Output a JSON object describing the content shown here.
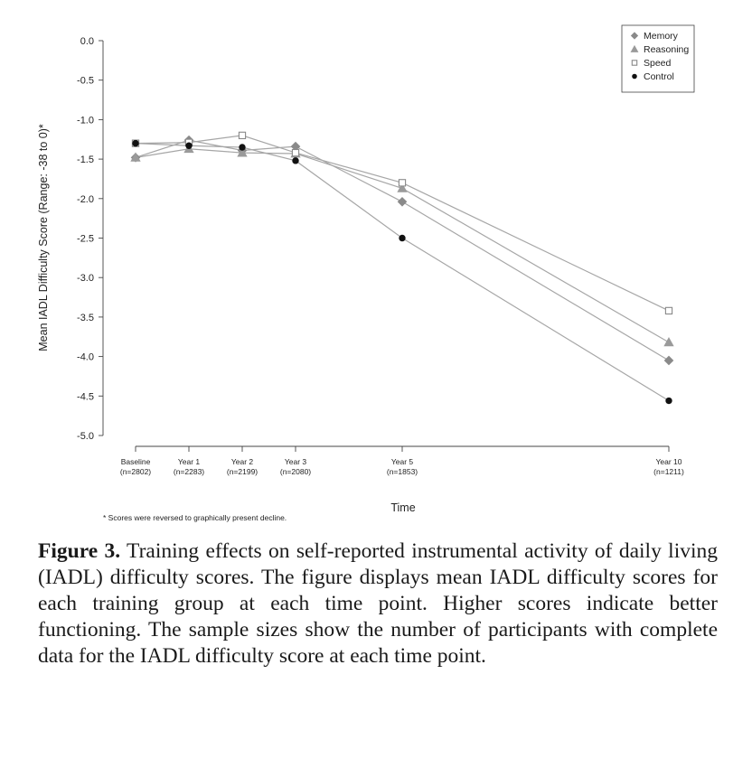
{
  "chart_data": {
    "type": "line",
    "ylabel": "Mean IADL Difficulty Score (Range: -38 to 0)*",
    "xlabel": "Time",
    "ylim": [
      -5.0,
      0.0
    ],
    "yticks": [
      "0.0",
      "-0.5",
      "-1.0",
      "-1.5",
      "-2.0",
      "-2.5",
      "-3.0",
      "-3.5",
      "-4.0",
      "-4.5",
      "-5.0"
    ],
    "x": [
      0,
      1,
      2,
      3,
      5,
      10
    ],
    "categories": [
      {
        "name": "Baseline",
        "n": "(n=2802)"
      },
      {
        "name": "Year 1",
        "n": "(n=2283)"
      },
      {
        "name": "Year 2",
        "n": "(n=2199)"
      },
      {
        "name": "Year 3",
        "n": "(n=2080)"
      },
      {
        "name": "Year 5",
        "n": "(n=1853)"
      },
      {
        "name": "Year 10",
        "n": "(n=1211)"
      }
    ],
    "series": [
      {
        "name": "Memory",
        "marker": "diamond",
        "values": [
          -1.48,
          -1.26,
          -1.39,
          -1.34,
          -2.04,
          -4.05
        ]
      },
      {
        "name": "Reasoning",
        "marker": "triangle",
        "values": [
          -1.48,
          -1.37,
          -1.42,
          -1.43,
          -1.87,
          -3.82
        ]
      },
      {
        "name": "Speed",
        "marker": "square-open",
        "values": [
          -1.3,
          -1.29,
          -1.2,
          -1.42,
          -1.8,
          -3.42
        ]
      },
      {
        "name": "Control",
        "marker": "circle",
        "values": [
          -1.3,
          -1.33,
          -1.35,
          -1.52,
          -2.5,
          -4.56
        ]
      }
    ],
    "legend_position": "top-right",
    "grid": false,
    "footnote": "* Scores were reversed to graphically present decline."
  },
  "caption": {
    "label": "Figure 3.",
    "text": " Training effects on self-reported instrumental activity of daily living (IADL) difficulty scores. The figure displays mean IADL difficulty scores for each training group at each time point. Higher scores indicate better functioning. The sample sizes show the number of participants with complete data for the IADL difficulty score at each time point."
  }
}
